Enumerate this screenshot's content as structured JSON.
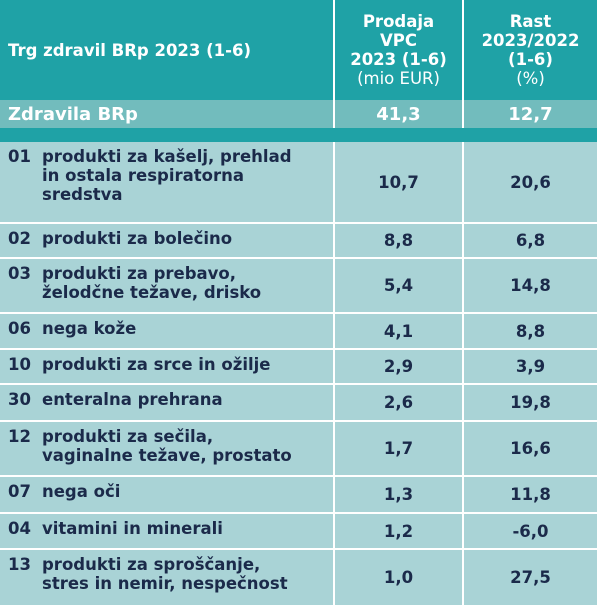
{
  "header": {
    "title": "Trg zdravil BRp 2023 (1-6)",
    "col2": {
      "lines": [
        "Prodaja",
        "VPC",
        "2023 (1-6)"
      ],
      "unit": "(mio EUR)"
    },
    "col3": {
      "lines": [
        "Rast",
        "2023/2022",
        "(1-6)"
      ],
      "unit": "(%)"
    }
  },
  "summary": {
    "label": "Zdravila BRp",
    "sales": "41,3",
    "growth": "12,7"
  },
  "rows": [
    {
      "code": "01",
      "lines": [
        "produkti za kašelj, prehlad",
        "in ostala respiratorna",
        "sredstva"
      ],
      "sales": "10,7",
      "growth": "20,6"
    },
    {
      "code": "02",
      "lines": [
        "produkti za bolečino"
      ],
      "sales": "8,8",
      "growth": "6,8"
    },
    {
      "code": "03",
      "lines": [
        "produkti za prebavo,",
        "želodčne težave, drisko"
      ],
      "sales": "5,4",
      "growth": "14,8"
    },
    {
      "code": "06",
      "lines": [
        "nega kože"
      ],
      "sales": "4,1",
      "growth": "8,8"
    },
    {
      "code": "10",
      "lines": [
        "produkti za srce in ožilje"
      ],
      "sales": "2,9",
      "growth": "3,9"
    },
    {
      "code": "30",
      "lines": [
        "enteralna prehrana"
      ],
      "sales": "2,6",
      "growth": "19,8"
    },
    {
      "code": "12",
      "lines": [
        "produkti za sečila,",
        "vaginalne težave, prostato"
      ],
      "sales": "1,7",
      "growth": "16,6"
    },
    {
      "code": "07",
      "lines": [
        "nega oči"
      ],
      "sales": "1,3",
      "growth": "11,8"
    },
    {
      "code": "04",
      "lines": [
        "vitamini in minerali"
      ],
      "sales": "1,2",
      "growth": "-6,0"
    },
    {
      "code": "13",
      "lines": [
        "produkti za sproščanje,",
        "stres in nemir, nespečnost"
      ],
      "sales": "1,0",
      "growth": "27,5"
    }
  ]
}
